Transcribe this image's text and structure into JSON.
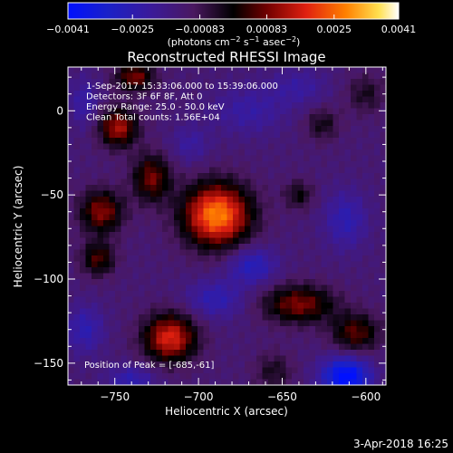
{
  "footer": {
    "timestamp": "3-Apr-2018 16:25"
  },
  "chart_data": {
    "type": "heatmap",
    "title": "Reconstructed RHESSI Image",
    "xlabel": "Heliocentric X (arcsec)",
    "ylabel": "Heliocentric Y (arcsec)",
    "xlim": [
      -778,
      -588
    ],
    "ylim": [
      -163,
      26
    ],
    "x_ticks": [
      -750,
      -700,
      -650,
      -600
    ],
    "x_tick_labels": [
      "−750",
      "−700",
      "−650",
      "−600"
    ],
    "y_ticks": [
      0,
      -50,
      -100,
      -150
    ],
    "y_tick_labels": [
      "0",
      "−50",
      "−100",
      "−150"
    ],
    "annotations": [
      "1-Sep-2017 15:33:06.000 to 15:39:06.000",
      "Detectors: 3F 6F 8F, Att 0",
      "Energy Range: 25.0 - 50.0 keV",
      "Clean     Total counts: 1.56E+04"
    ],
    "peak_label": "Position of Peak = [-685,-61]",
    "peak_position": [
      -685,
      -61
    ],
    "colorbar": {
      "range": [
        -0.0041,
        0.0041
      ],
      "tick_values": [
        -0.0041,
        -0.0025,
        -0.00083,
        0.00083,
        0.0025,
        0.0041
      ],
      "tick_labels": [
        "−0.0041",
        "−0.0025",
        "−0.00083",
        "0.00083",
        "0.0025",
        "0.0041"
      ],
      "units_prefix": "(photons cm",
      "units_e1": "−2",
      "units_mid": " s",
      "units_e2": "−1",
      "units_mid2": " asec",
      "units_e3": "−2",
      "units_suffix": ")"
    },
    "sources": [
      {
        "x": -689,
        "y": -62,
        "sx": 14,
        "sy": 13,
        "amp": 0.0041
      },
      {
        "x": -717,
        "y": -135,
        "sx": 11,
        "sy": 10,
        "amp": 0.0031
      },
      {
        "x": -748,
        "y": -10,
        "sx": 8,
        "sy": 8,
        "amp": 0.0026
      },
      {
        "x": -738,
        "y": 20,
        "sx": 8,
        "sy": 6,
        "amp": 0.0022
      },
      {
        "x": -728,
        "y": -40,
        "sx": 8,
        "sy": 10,
        "amp": 0.0021
      },
      {
        "x": -758,
        "y": -60,
        "sx": 9,
        "sy": 9,
        "amp": 0.0023
      },
      {
        "x": -760,
        "y": -88,
        "sx": 7,
        "sy": 7,
        "amp": 0.0018
      },
      {
        "x": -640,
        "y": -115,
        "sx": 15,
        "sy": 8,
        "amp": 0.0022
      },
      {
        "x": -606,
        "y": -132,
        "sx": 10,
        "sy": 8,
        "amp": 0.0019
      },
      {
        "x": -640,
        "y": -50,
        "sx": 6,
        "sy": 6,
        "amp": 0.0012
      },
      {
        "x": -626,
        "y": -8,
        "sx": 7,
        "sy": 7,
        "amp": 0.0011
      },
      {
        "x": -600,
        "y": 10,
        "sx": 8,
        "sy": 8,
        "amp": 0.001
      },
      {
        "x": -655,
        "y": -155,
        "sx": 8,
        "sy": 8,
        "amp": 0.001
      },
      {
        "x": -668,
        "y": -92,
        "sx": 10,
        "sy": 8,
        "amp": -0.0015
      },
      {
        "x": -612,
        "y": -158,
        "sx": 10,
        "sy": 8,
        "amp": -0.003
      },
      {
        "x": -612,
        "y": -65,
        "sx": 9,
        "sy": 12,
        "amp": -0.0012
      },
      {
        "x": -690,
        "y": -112,
        "sx": 12,
        "sy": 8,
        "amp": -0.0012
      },
      {
        "x": -768,
        "y": -130,
        "sx": 8,
        "sy": 10,
        "amp": -0.0012
      },
      {
        "x": -670,
        "y": 0,
        "sx": 15,
        "sy": 10,
        "amp": -0.0009
      },
      {
        "x": -640,
        "y": 14,
        "sx": 12,
        "sy": 8,
        "amp": -0.0008
      },
      {
        "x": -705,
        "y": -20,
        "sx": 8,
        "sy": 8,
        "amp": -0.0008
      },
      {
        "x": -768,
        "y": 5,
        "sx": 6,
        "sy": 10,
        "amp": -0.001
      },
      {
        "x": -740,
        "y": -160,
        "sx": 10,
        "sy": 6,
        "amp": -0.0012
      }
    ]
  }
}
